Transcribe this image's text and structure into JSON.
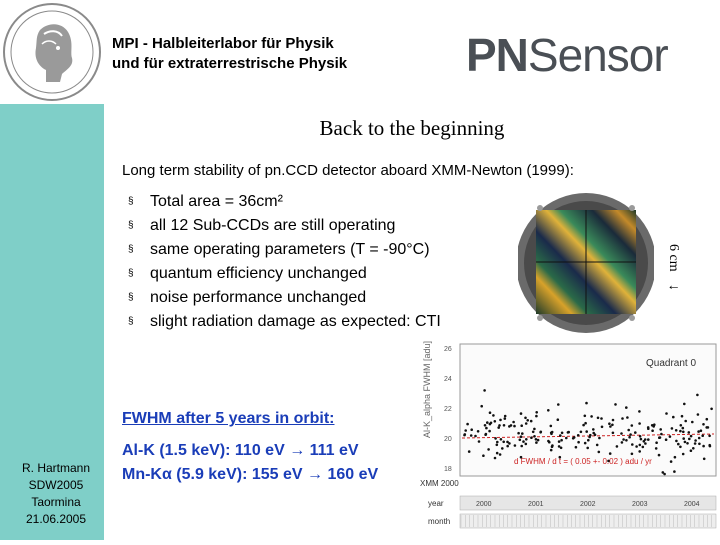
{
  "header": {
    "institute_line1": "MPI  -   Halbleiterlabor für Physik",
    "institute_line2": "und für extraterrestrische Physik",
    "brand_pn": "PN",
    "brand_sensor": "Sensor"
  },
  "slide": {
    "title": "Back to the beginning",
    "subtitle": "Long term stability of pn.CCD detector aboard XMM-Newton (1999):",
    "bullets": [
      "Total area = 36cm²",
      "all 12 Sub-CCDs are still operating",
      "same operating parameters (T = -90°C)",
      "quantum efficiency unchanged",
      "noise performance unchanged",
      "slight radiation damage as expected: CTI"
    ],
    "bullet_marker": "§",
    "fwhm_heading": "FWHM after 5 years in orbit:",
    "fwhm_lines": [
      "Al-K    (1.5 keV): 110 eV → 111 eV",
      "Mn-Kα (5.9 keV): 155 eV → 160 eV"
    ]
  },
  "figure": {
    "dimension_label": "6 cm",
    "arrow_up": "↑",
    "arrow_down": "↓",
    "plot_ylabel": "Al-K_alpha FWHM [adu]",
    "plot_label": "Quadrant 0",
    "plot_fit": "d FWHM / d t = ( 0.05 +- 0.02 ) adu / yr",
    "plot_xaxis_label": "XMM 2000",
    "plot_row_year": "year",
    "plot_row_month": "month",
    "plot_years": [
      "2000",
      "2001",
      "2002",
      "2003",
      "2004"
    ],
    "plot_yticks": [
      "26",
      "24",
      "22",
      "20",
      "18"
    ]
  },
  "footer": {
    "author": "R. Hartmann",
    "event": "SDW2005",
    "place": "Taormina",
    "date": "21.06.2005"
  },
  "colors": {
    "sidebar": "#7fcfc8",
    "accent_blue": "#1a3db8",
    "brand_gray": "#4a4f55"
  }
}
